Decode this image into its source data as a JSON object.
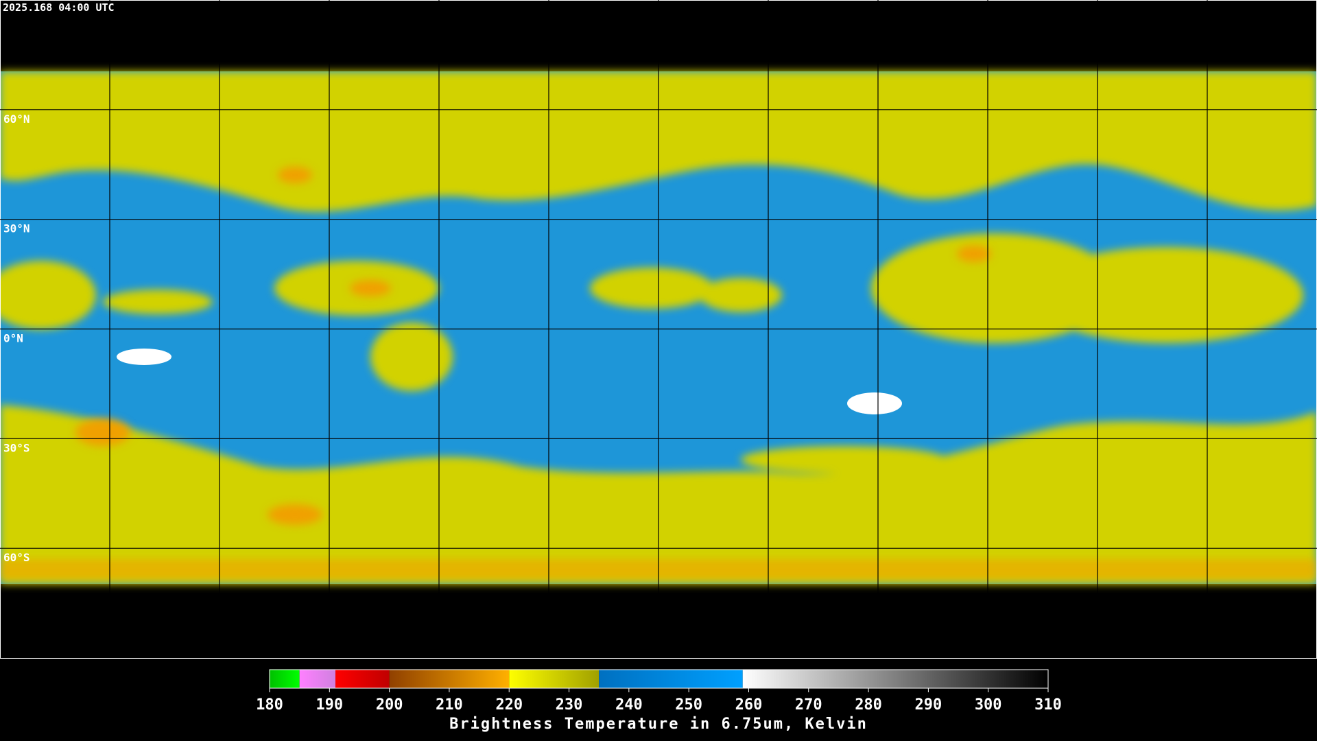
{
  "header": {
    "timestamp": "2025.168 04:00 UTC"
  },
  "map": {
    "lon_range": [
      -180,
      180
    ],
    "lat_range": [
      90,
      -90
    ],
    "lat_lines": [
      {
        "value": 60,
        "label": "60°N"
      },
      {
        "value": 30,
        "label": "30°N"
      },
      {
        "value": 0,
        "label": "0°N"
      },
      {
        "value": -30,
        "label": "30°S"
      },
      {
        "value": -60,
        "label": "60°S"
      }
    ],
    "lon_lines": [
      -150,
      -120,
      -90,
      -60,
      -30,
      0,
      30,
      60,
      90,
      120,
      150
    ]
  },
  "colorbar": {
    "range": [
      180,
      310
    ],
    "ticks": [
      180,
      190,
      200,
      210,
      220,
      230,
      240,
      250,
      260,
      270,
      280,
      290,
      300,
      310
    ],
    "label": "Brightness Temperature in 6.75um, Kelvin",
    "segments": [
      {
        "from": 180,
        "to": 185,
        "colors": [
          "#00c000",
          "#00ff00"
        ]
      },
      {
        "from": 185,
        "to": 191,
        "colors": [
          "#ff80ff",
          "#d080e0"
        ]
      },
      {
        "from": 191,
        "to": 200,
        "colors": [
          "#ff0000",
          "#c00000"
        ]
      },
      {
        "from": 200,
        "to": 220,
        "colors": [
          "#904000",
          "#ffb000"
        ]
      },
      {
        "from": 220,
        "to": 235,
        "colors": [
          "#ffff00",
          "#a0a000"
        ]
      },
      {
        "from": 235,
        "to": 259,
        "colors": [
          "#0070c0",
          "#00a0ff"
        ]
      },
      {
        "from": 259,
        "to": 310,
        "colors": [
          "#ffffff",
          "#000000"
        ]
      }
    ]
  }
}
